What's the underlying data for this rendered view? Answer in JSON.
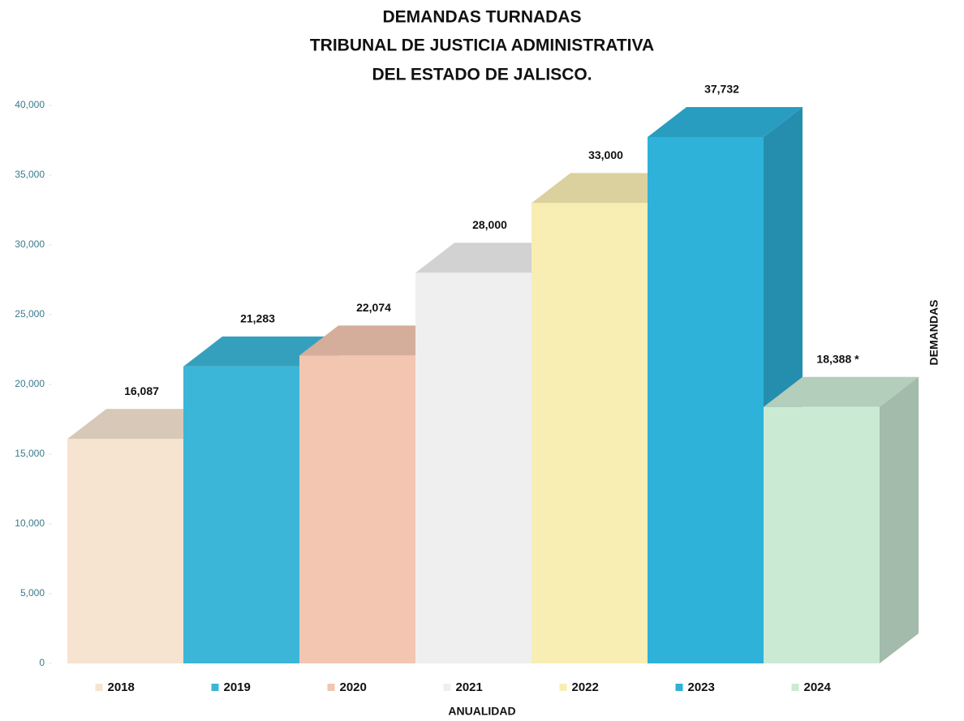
{
  "chart_data": {
    "type": "bar3d",
    "title_lines": [
      "DEMANDAS TURNADAS",
      "TRIBUNAL DE JUSTICIA ADMINISTRATIVA",
      "DEL ESTADO DE JALISCO."
    ],
    "categories": [
      "2018",
      "2019",
      "2020",
      "2021",
      "2022",
      "2023",
      "2024"
    ],
    "values": [
      16087,
      21283,
      22074,
      28000,
      33000,
      37732,
      18388
    ],
    "value_labels": [
      "16,087",
      "21,283",
      "22,074",
      "28,000",
      "33,000",
      "37,732",
      "18,388 *"
    ],
    "colors": [
      "#f6e3d0",
      "#3cb6d8",
      "#f2c6b0",
      "#efefef",
      "#f8eeb4",
      "#2eb2da",
      "#cbead4"
    ],
    "ylim": [
      0,
      40000
    ],
    "yticks": [
      0,
      {
        "value": 5000,
        "label": "5,000"
      },
      {
        "value": 10000,
        "label": "10,000"
      },
      {
        "value": 15000,
        "label": "15,000"
      },
      {
        "value": 20000,
        "label": "20,000"
      },
      {
        "value": 25000,
        "label": "25,000"
      },
      {
        "value": 30000,
        "label": "30,000"
      },
      {
        "value": 35000,
        "label": "35,000"
      },
      {
        "value": 40000,
        "label": "40,000"
      }
    ],
    "xlabel": "ANUALIDAD",
    "ylabel": "DEMANDAS"
  }
}
